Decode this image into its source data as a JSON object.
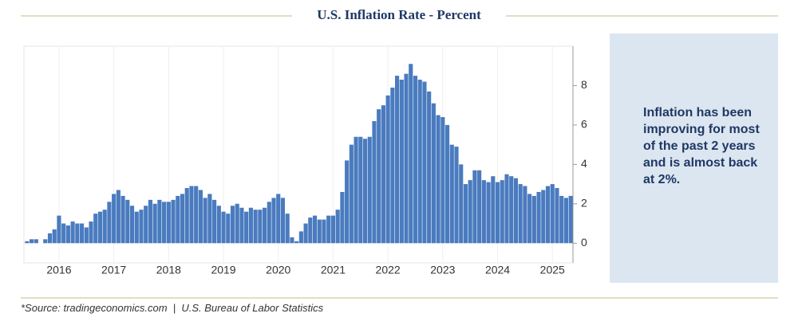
{
  "title": "U.S. Inflation Rate - Percent",
  "note": "Inflation has been improving for most of the past 2 years and is almost back at 2%.",
  "source": "*Source: tradingeconomics.com  |  U.S. Bureau of Labor Statistics",
  "chart_data": {
    "type": "bar",
    "color": "#4a7bbf",
    "categories": [
      null,
      null,
      null,
      null,
      null,
      null,
      null,
      "2016",
      null,
      null,
      null,
      null,
      null,
      null,
      null,
      null,
      null,
      null,
      null,
      "2017",
      null,
      null,
      null,
      null,
      null,
      null,
      null,
      null,
      null,
      null,
      null,
      "2018",
      null,
      null,
      null,
      null,
      null,
      null,
      null,
      null,
      null,
      null,
      null,
      "2019",
      null,
      null,
      null,
      null,
      null,
      null,
      null,
      null,
      null,
      null,
      null,
      "2020",
      null,
      null,
      null,
      null,
      null,
      null,
      null,
      null,
      null,
      null,
      null,
      "2021",
      null,
      null,
      null,
      null,
      null,
      null,
      null,
      null,
      null,
      null,
      null,
      "2022",
      null,
      null,
      null,
      null,
      null,
      null,
      null,
      null,
      null,
      null,
      null,
      "2023",
      null,
      null,
      null,
      null,
      null,
      null,
      null,
      null,
      null,
      null,
      null,
      "2024",
      null,
      null,
      null,
      null,
      null,
      null,
      null,
      null,
      null,
      null,
      null,
      "2025",
      null,
      null,
      null,
      null
    ],
    "values": [
      0.1,
      0.2,
      0.2,
      0.0,
      0.2,
      0.5,
      0.7,
      1.4,
      1.0,
      0.9,
      1.1,
      1.0,
      1.0,
      0.8,
      1.1,
      1.5,
      1.6,
      1.7,
      2.1,
      2.5,
      2.7,
      2.4,
      2.2,
      1.9,
      1.6,
      1.7,
      1.9,
      2.2,
      2.0,
      2.2,
      2.1,
      2.1,
      2.2,
      2.4,
      2.5,
      2.8,
      2.9,
      2.9,
      2.7,
      2.3,
      2.5,
      2.2,
      1.9,
      1.6,
      1.5,
      1.9,
      2.0,
      1.8,
      1.6,
      1.8,
      1.7,
      1.7,
      1.8,
      2.1,
      2.3,
      2.5,
      2.3,
      1.5,
      0.3,
      0.1,
      0.6,
      1.0,
      1.3,
      1.4,
      1.2,
      1.2,
      1.4,
      1.4,
      1.7,
      2.6,
      4.2,
      5.0,
      5.4,
      5.4,
      5.3,
      5.4,
      6.2,
      6.8,
      7.0,
      7.5,
      7.9,
      8.5,
      8.3,
      8.6,
      9.1,
      8.5,
      8.3,
      8.2,
      7.7,
      7.1,
      6.5,
      6.4,
      6.0,
      5.0,
      4.9,
      4.0,
      3.0,
      3.2,
      3.7,
      3.7,
      3.2,
      3.1,
      3.4,
      3.1,
      3.2,
      3.5,
      3.4,
      3.3,
      3.0,
      2.9,
      2.5,
      2.4,
      2.6,
      2.7,
      2.9,
      3.0,
      2.8,
      2.4,
      2.3,
      2.4
    ],
    "ylim": [
      -1,
      10
    ],
    "yticks": [
      0,
      2,
      4,
      6,
      8
    ]
  }
}
